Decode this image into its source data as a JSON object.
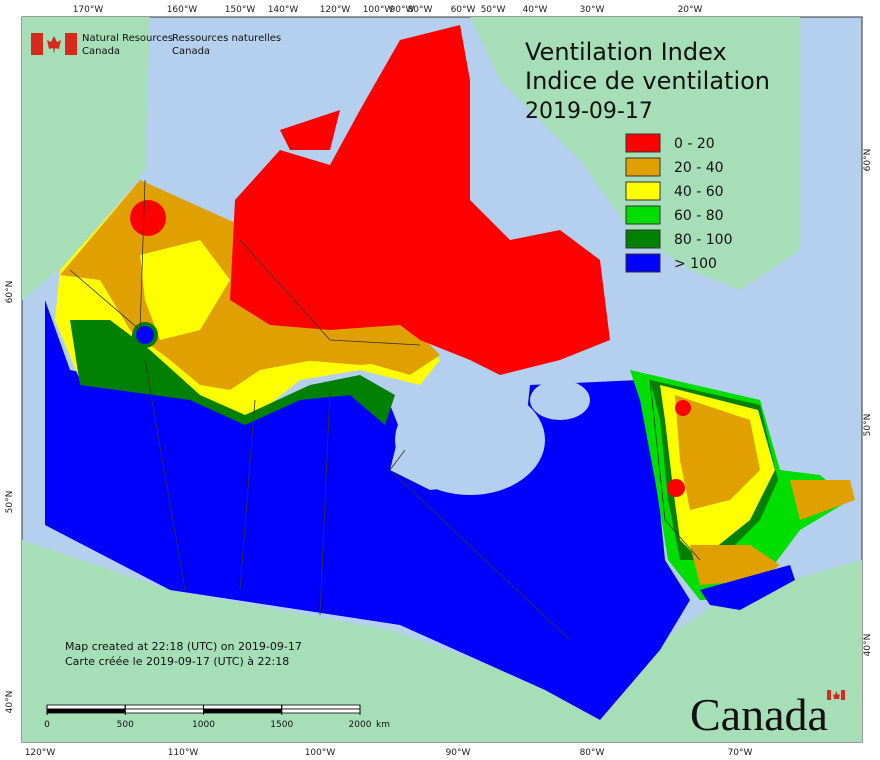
{
  "header": {
    "agency_en": [
      "Natural Resources",
      "Canada"
    ],
    "agency_fr": [
      "Ressources naturelles",
      "Canada"
    ]
  },
  "title": {
    "lines": [
      "Ventilation Index",
      "Indice de ventilation"
    ],
    "date": "2019-09-17"
  },
  "legend": [
    {
      "label": "0 - 20",
      "color": "#ff0000"
    },
    {
      "label": "20 - 40",
      "color": "#e0a000"
    },
    {
      "label": "40 - 60",
      "color": "#ffff00"
    },
    {
      "label": "60 - 80",
      "color": "#00dd00"
    },
    {
      "label": "80 - 100",
      "color": "#008000"
    },
    {
      "label": "> 100",
      "color": "#0000ff"
    }
  ],
  "graticule": {
    "top": [
      "170°W",
      "160°W",
      "150°W",
      "140°W",
      "120°W",
      "100°W",
      "90°W",
      "80°W",
      "60°W",
      "50°W",
      "40°W",
      "30°W",
      "20°W"
    ],
    "bottom": [
      "120°W",
      "110°W",
      "100°W",
      "90°W",
      "80°W",
      "70°W"
    ],
    "left": [
      "60°N",
      "50°N",
      "40°N"
    ],
    "right": [
      "60°N",
      "50°N",
      "40°N"
    ]
  },
  "notes": [
    "Map created at 22:18 (UTC) on 2019-09-17",
    "Carte créée le 2019-09-17 (UTC) à 22:18"
  ],
  "scale": {
    "ticks": [
      0,
      500,
      1000,
      1500,
      2000
    ],
    "unit": "km"
  },
  "wordmark": "Canada"
}
